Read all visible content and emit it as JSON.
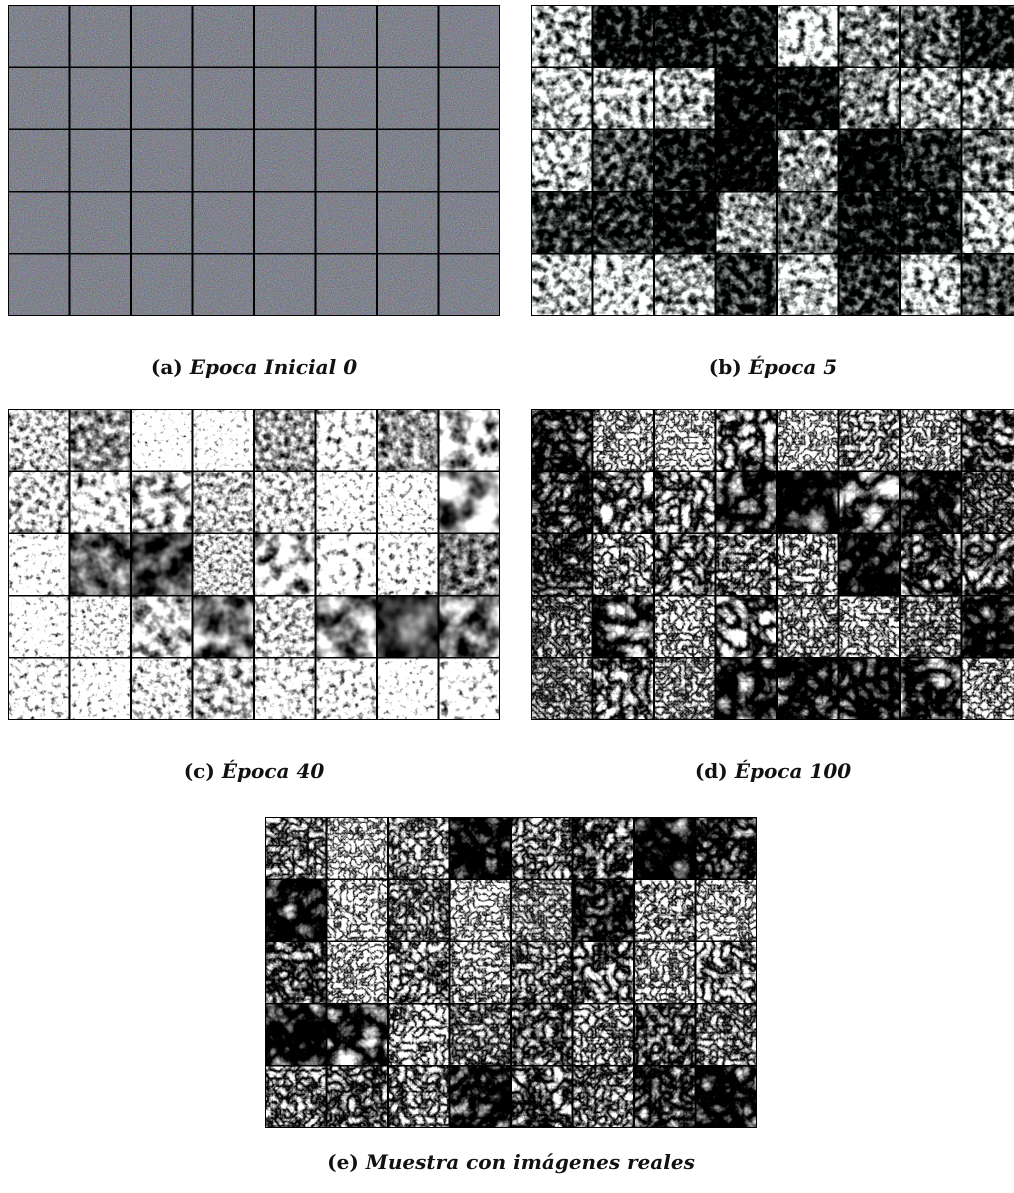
{
  "figures": [
    {
      "label": "(a)",
      "caption": "Epoca Inicial 0"
    },
    {
      "label": "(b)",
      "caption": "Época 5"
    },
    {
      "label": "(c)",
      "caption": "Época 40"
    },
    {
      "label": "(d)",
      "caption": "Época 100"
    },
    {
      "label": "(e)",
      "caption": "Muestra con imágenes reales"
    }
  ]
}
